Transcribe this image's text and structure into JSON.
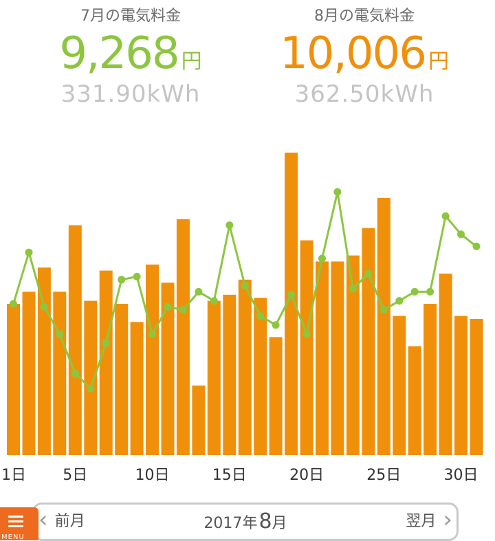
{
  "summary": {
    "july": {
      "label": "7月の電気料金",
      "amount": "9,268",
      "unit": "円",
      "kwh": "331.90kWh"
    },
    "august": {
      "label": "8月の電気料金",
      "amount": "10,006",
      "unit": "円",
      "kwh": "362.50kWh"
    }
  },
  "colors": {
    "bar": "#f0900a",
    "line": "#8cc63f",
    "july_text": "#8cc63f",
    "august_text": "#f0900a",
    "menu": "#ee6a1e"
  },
  "chart_data": {
    "type": "bar",
    "x_tick_labels": [
      "1日",
      "5日",
      "10日",
      "15日",
      "20日",
      "25日",
      "30日"
    ],
    "x_tick_days": [
      1,
      5,
      10,
      15,
      20,
      25,
      30
    ],
    "days": [
      1,
      2,
      3,
      4,
      5,
      6,
      7,
      8,
      9,
      10,
      11,
      12,
      13,
      14,
      15,
      16,
      17,
      18,
      19,
      20,
      21,
      22,
      23,
      24,
      25,
      26,
      27,
      28,
      29,
      30,
      31
    ],
    "series": [
      {
        "values": [
          50,
          54,
          62,
          54,
          76,
          51,
          61,
          50,
          44,
          63,
          57,
          78,
          23,
          51,
          53,
          58,
          52,
          39,
          100,
          71,
          64,
          64,
          66,
          75,
          85,
          46,
          36,
          50,
          60,
          46,
          45
        ]
      },
      {
        "values": [
          50,
          67,
          49,
          40,
          27,
          22,
          37,
          58,
          59,
          40,
          49,
          48,
          54,
          51,
          76,
          56,
          46,
          43,
          53,
          40,
          65,
          87,
          55,
          60,
          48,
          51,
          54,
          54,
          79,
          73,
          69
        ]
      }
    ],
    "grid": false
  },
  "nav": {
    "prev_label": "前月",
    "next_label": "翌月",
    "year": "2017",
    "year_unit": "年",
    "month": "8",
    "month_unit": "月"
  },
  "menu": {
    "label": "MENU",
    "icon": "hamburger-icon"
  }
}
